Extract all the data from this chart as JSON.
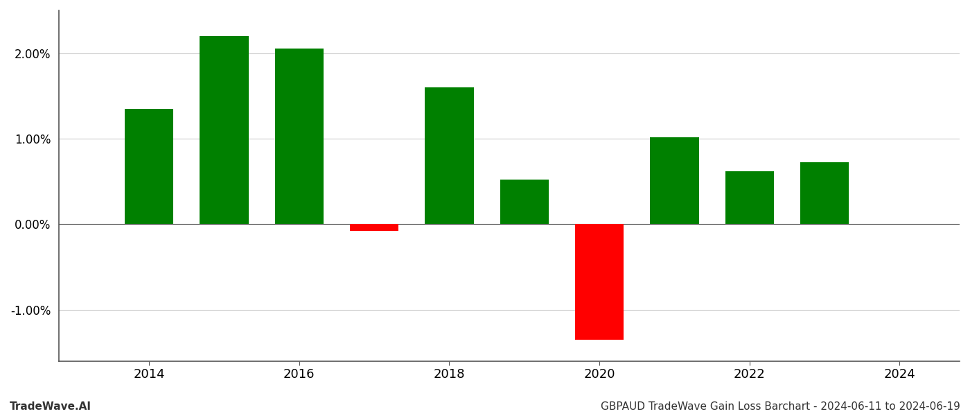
{
  "years": [
    2014,
    2015,
    2016,
    2017,
    2018,
    2019,
    2020,
    2021,
    2022,
    2023
  ],
  "values": [
    1.35,
    2.2,
    2.05,
    -0.08,
    1.6,
    0.52,
    -1.35,
    1.02,
    0.62,
    0.72
  ],
  "colors": [
    "#008000",
    "#008000",
    "#008000",
    "#ff0000",
    "#008000",
    "#008000",
    "#ff0000",
    "#008000",
    "#008000",
    "#008000"
  ],
  "ylim": [
    -1.6,
    2.5
  ],
  "bar_width": 0.65,
  "background_color": "#ffffff",
  "grid_color": "#cccccc",
  "footer_left": "TradeWave.AI",
  "footer_right": "GBPAUD TradeWave Gain Loss Barchart - 2024-06-11 to 2024-06-19",
  "xtick_labels": [
    "2014",
    "2016",
    "2018",
    "2020",
    "2022",
    "2024"
  ],
  "xtick_positions": [
    2014,
    2016,
    2018,
    2020,
    2022,
    2024
  ],
  "xlim": [
    2012.8,
    2024.8
  ],
  "spine_color": "#555555",
  "tick_label_fontsize": 13,
  "footer_fontsize": 11
}
